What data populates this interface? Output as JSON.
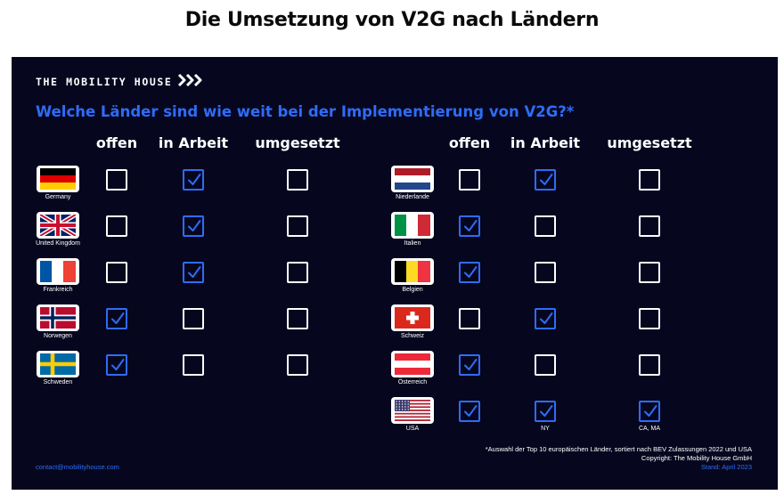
{
  "page_title": "Die Umsetzung von V2G nach Ländern",
  "brand": {
    "name": "THE MOBILITY HOUSE",
    "icon": "triple-chevron-right-icon"
  },
  "question": "Welche Länder sind wie weit bei der Implementierung von V2G?*",
  "columns": [
    "offen",
    "in Arbeit",
    "umgesetzt"
  ],
  "colors": {
    "panel": "#06071f",
    "accent": "#2f6cf5",
    "text": "#ffffff"
  },
  "left_countries": [
    {
      "name": "Germany",
      "flag": "germany",
      "status": "in Arbeit"
    },
    {
      "name": "United Kingdom",
      "flag": "united-kingdom",
      "status": "in Arbeit"
    },
    {
      "name": "Frankreich",
      "flag": "france",
      "status": "in Arbeit"
    },
    {
      "name": "Norwegen",
      "flag": "norway",
      "status": "offen"
    },
    {
      "name": "Schweden",
      "flag": "sweden",
      "status": "offen"
    }
  ],
  "right_countries": [
    {
      "name": "Niederlande",
      "flag": "netherlands",
      "status": "in Arbeit"
    },
    {
      "name": "Italien",
      "flag": "italy",
      "status": "offen"
    },
    {
      "name": "Belgien",
      "flag": "belgium",
      "status": "offen"
    },
    {
      "name": "Schweiz",
      "flag": "switzerland",
      "status": "in Arbeit"
    },
    {
      "name": "Österreich",
      "flag": "austria",
      "status": "offen"
    },
    {
      "name": "USA",
      "flag": "usa",
      "status": "all",
      "notes": {
        "in Arbeit": "NY",
        "umgesetzt": "CA, MA"
      }
    }
  ],
  "footnote": {
    "line1": "*Auswahl der Top 10 europäischen Länder, sortiert nach BEV Zulassungen 2022 und USA",
    "line2": "Copyright: The Mobility House GmbH",
    "line3": "Stand: April 2023"
  },
  "contact": "contact@mobilityhouse.com"
}
